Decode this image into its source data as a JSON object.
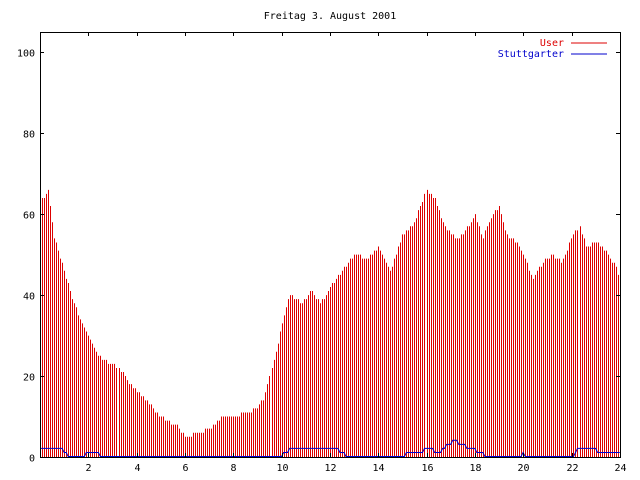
{
  "chart_data": {
    "type": "bar",
    "title": "Freitag 3. August 2001",
    "xlabel": "",
    "ylabel": "",
    "xlim": [
      0,
      24
    ],
    "ylim": [
      0,
      105
    ],
    "xticks": [
      2,
      4,
      6,
      8,
      10,
      12,
      14,
      16,
      18,
      20,
      22,
      24
    ],
    "yticks": [
      0,
      20,
      40,
      60,
      80,
      100
    ],
    "grid": false,
    "legend_position": "top-right",
    "colors": {
      "user": "#dd0000",
      "stuttgarter": "#0000cc",
      "axis": "#000000"
    },
    "user_anchors": [
      [
        0.0,
        63
      ],
      [
        0.15,
        64
      ],
      [
        0.35,
        66
      ],
      [
        0.55,
        55
      ],
      [
        0.8,
        50
      ],
      [
        1.0,
        46
      ],
      [
        1.3,
        40
      ],
      [
        1.6,
        35
      ],
      [
        2.0,
        30
      ],
      [
        2.3,
        26
      ],
      [
        2.6,
        24
      ],
      [
        3.0,
        23
      ],
      [
        3.4,
        21
      ],
      [
        3.7,
        18
      ],
      [
        4.0,
        16
      ],
      [
        4.4,
        14
      ],
      [
        4.8,
        11
      ],
      [
        5.2,
        9
      ],
      [
        5.6,
        8
      ],
      [
        6.0,
        5
      ],
      [
        6.5,
        6
      ],
      [
        7.0,
        7
      ],
      [
        7.5,
        10
      ],
      [
        8.0,
        10
      ],
      [
        8.5,
        11
      ],
      [
        9.0,
        12
      ],
      [
        9.3,
        15
      ],
      [
        9.6,
        22
      ],
      [
        10.0,
        33
      ],
      [
        10.3,
        40
      ],
      [
        10.8,
        38
      ],
      [
        11.2,
        41
      ],
      [
        11.6,
        38
      ],
      [
        12.0,
        42
      ],
      [
        12.5,
        46
      ],
      [
        13.0,
        50
      ],
      [
        13.5,
        49
      ],
      [
        14.0,
        52
      ],
      [
        14.5,
        46
      ],
      [
        15.0,
        55
      ],
      [
        15.5,
        58
      ],
      [
        16.0,
        66
      ],
      [
        16.3,
        64
      ],
      [
        16.7,
        57
      ],
      [
        17.0,
        55
      ],
      [
        17.3,
        54
      ],
      [
        17.7,
        57
      ],
      [
        18.0,
        60
      ],
      [
        18.3,
        54
      ],
      [
        18.7,
        60
      ],
      [
        19.0,
        62
      ],
      [
        19.3,
        55
      ],
      [
        19.7,
        53
      ],
      [
        20.0,
        50
      ],
      [
        20.4,
        44
      ],
      [
        20.8,
        48
      ],
      [
        21.2,
        50
      ],
      [
        21.6,
        48
      ],
      [
        22.0,
        54
      ],
      [
        22.3,
        57
      ],
      [
        22.6,
        52
      ],
      [
        23.0,
        53
      ],
      [
        23.5,
        50
      ],
      [
        23.8,
        47
      ],
      [
        24.0,
        44
      ]
    ],
    "stuttgarter_anchors": [
      [
        0.0,
        2
      ],
      [
        0.9,
        2
      ],
      [
        1.0,
        1
      ],
      [
        1.3,
        0
      ],
      [
        1.8,
        0
      ],
      [
        2.0,
        1
      ],
      [
        2.4,
        1
      ],
      [
        2.5,
        0
      ],
      [
        9.9,
        0
      ],
      [
        10.1,
        1
      ],
      [
        10.5,
        2
      ],
      [
        12.3,
        2
      ],
      [
        12.5,
        1
      ],
      [
        12.7,
        0
      ],
      [
        15.0,
        0
      ],
      [
        15.2,
        1
      ],
      [
        15.8,
        1
      ],
      [
        16.0,
        2
      ],
      [
        16.5,
        1
      ],
      [
        16.9,
        3
      ],
      [
        17.1,
        4
      ],
      [
        17.5,
        3
      ],
      [
        17.8,
        2
      ],
      [
        18.3,
        1
      ],
      [
        18.5,
        0
      ],
      [
        19.9,
        0
      ],
      [
        20.0,
        1
      ],
      [
        20.1,
        0
      ],
      [
        22.0,
        0
      ],
      [
        22.3,
        2
      ],
      [
        22.9,
        2
      ],
      [
        23.2,
        1
      ],
      [
        24.0,
        1
      ]
    ],
    "series": [
      {
        "name": "User",
        "color": "#dd0000"
      },
      {
        "name": "Stuttgarter",
        "color": "#0000cc"
      }
    ],
    "bar_step_hours": 0.0833
  }
}
